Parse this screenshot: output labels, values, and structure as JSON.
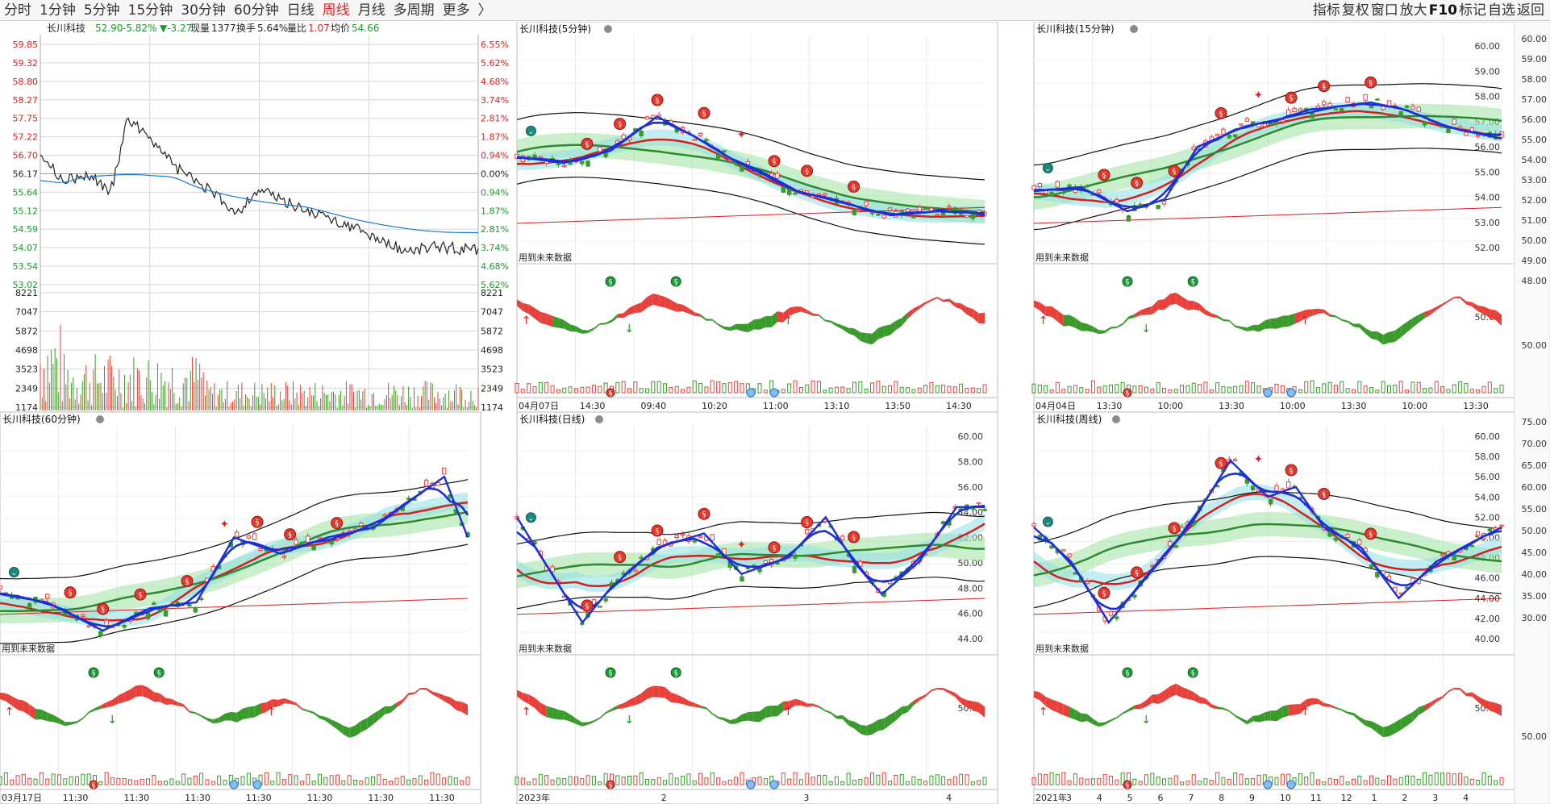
{
  "toolbar": {
    "periods": [
      "分时",
      "1分钟",
      "5分钟",
      "15分钟",
      "30分钟",
      "60分钟",
      "日线",
      "周线",
      "月线",
      "多周期",
      "更多"
    ],
    "active": "周线",
    "more_chevron": "〉",
    "right": [
      "指标",
      "复权",
      "窗口",
      "放大",
      "F10",
      "标记",
      "自选",
      "返回"
    ]
  },
  "colors": {
    "up": "#e8413c",
    "down": "#3a9b2c",
    "accent": "#1c2fd9",
    "grid": "#d6d6d6",
    "ma": "#1a7ad8"
  },
  "intraday": {
    "name": "长川科技",
    "price": "52.90",
    "pct": "-5.82%",
    "change": "▼-3.27",
    "volume_label": "现量",
    "volume": "1377",
    "turnover_label": "换手",
    "turnover": "5.64%",
    "ratio_label": "量比",
    "ratio": "1.07",
    "avg_label": "均价",
    "avg": "54.66",
    "prices": [
      "59.85",
      "59.32",
      "58.80",
      "58.27",
      "57.75",
      "57.22",
      "56.70",
      "56.17",
      "55.64",
      "55.12",
      "54.59",
      "54.07",
      "53.54",
      "53.02"
    ],
    "pcts": [
      "6.55%",
      "5.62%",
      "4.68%",
      "3.74%",
      "2.81%",
      "1.87%",
      "0.94%",
      "0.00%",
      "0.94%",
      "1.87%",
      "2.81%",
      "3.74%",
      "4.68%",
      "5.62%"
    ],
    "vol_ticks": [
      "8221",
      "7047",
      "5872",
      "4698",
      "3523",
      "2349",
      "1174"
    ]
  },
  "panels": [
    {
      "title": "长川科技(5分钟)",
      "y_ticks": [],
      "sub_tick": "",
      "dates": [
        "04月07日",
        "14:30",
        "09:40",
        "10:20",
        "11:00",
        "13:10",
        "13:50",
        "14:30"
      ],
      "future_note": "用到未来数据"
    },
    {
      "title": "长川科技(15分钟)",
      "y_ticks": [
        "60.00",
        "59.00",
        "58.00",
        "57.00",
        "56.00",
        "55.00",
        "54.00",
        "53.00",
        "52.00"
      ],
      "sub_tick": "50.00",
      "dates": [
        "04月04日",
        "13:30",
        "10:00",
        "13:30",
        "10:00",
        "13:30",
        "10:00",
        "13:30"
      ],
      "future_note": "用到未来数据"
    },
    {
      "title": "长川科技(60分钟)",
      "y_ticks": [],
      "sub_tick": "",
      "dates": [
        "03月17日",
        "11:30",
        "11:30",
        "11:30",
        "11:30",
        "11:30",
        "11:30",
        "11:30"
      ],
      "future_note": "用到未来数据"
    },
    {
      "title": "长川科技(日线)",
      "y_ticks": [
        "60.00",
        "58.00",
        "56.00",
        "54.00",
        "52.00",
        "50.00",
        "48.00",
        "46.00",
        "44.00"
      ],
      "sub_tick": "50.00",
      "dates": [
        "2023年",
        "2",
        "3",
        "4"
      ],
      "future_note": "用到未来数据"
    },
    {
      "title": "长川科技(周线)",
      "y_ticks": [
        "60.00",
        "58.00",
        "56.00",
        "54.00",
        "52.00",
        "50.00",
        "48.00",
        "46.00",
        "44.00",
        "42.00",
        "40.00"
      ],
      "sub_tick": "50.00",
      "dates": [
        "2021年",
        "3",
        "4",
        "5",
        "6",
        "7",
        "8",
        "9",
        "10",
        "11",
        "12",
        "1",
        "2",
        "3",
        "4"
      ],
      "future_note": "用到未来数据"
    }
  ],
  "right_axis_top": [
    "60.00",
    "59.00",
    "58.00",
    "57.00",
    "56.00",
    "55.00",
    "54.00",
    "53.00",
    "52.00",
    "51.00",
    "50.00",
    "49.00",
    "48.00",
    "50.00"
  ],
  "right_axis_bottom": [
    "75.00",
    "70.00",
    "65.00",
    "60.00",
    "55.00",
    "50.00",
    "45.00",
    "40.00",
    "35.00",
    "30.00",
    "50.00"
  ]
}
